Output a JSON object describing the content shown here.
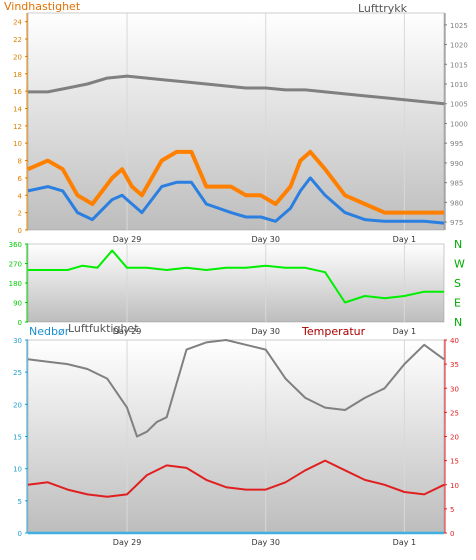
{
  "chart_data": [
    {
      "type": "line",
      "title_left": "Vindhastighet",
      "title_right": "Lufttrykk",
      "colors": {
        "gust": "#ff8000",
        "wind": "#2a7fe0",
        "pressure": "#808080",
        "left_axis": "#e08000",
        "right_axis": "#808080"
      },
      "x_ticks": [
        "Day 29",
        "Day 30",
        "Day 1"
      ],
      "y_left": {
        "range": [
          0,
          25
        ],
        "ticks": [
          "0",
          "2",
          "4",
          "6",
          "8",
          "10",
          "12",
          "14",
          "16",
          "18",
          "20",
          "22",
          "24"
        ]
      },
      "y_right": {
        "range": [
          973,
          1028
        ],
        "ticks": [
          "975",
          "980",
          "985",
          "990",
          "995",
          "1000",
          "1005",
          "1010",
          "1015",
          "1020",
          "1025"
        ]
      },
      "series": [
        {
          "key": "pressure",
          "axis": "right",
          "x": [
            0,
            4,
            8,
            12,
            16,
            20,
            24,
            28,
            32,
            36,
            40,
            44,
            48,
            52,
            56,
            60,
            64,
            68,
            72,
            76,
            80,
            84
          ],
          "y": [
            1008,
            1008,
            1009,
            1010,
            1011.5,
            1012,
            1011.5,
            1011,
            1010.5,
            1010,
            1009.5,
            1009,
            1009,
            1008.5,
            1008.5,
            1008,
            1007.5,
            1007,
            1006.5,
            1006,
            1005.5,
            1005
          ]
        },
        {
          "key": "gust",
          "axis": "left",
          "x": [
            0,
            4,
            7,
            10,
            13,
            17,
            19,
            21,
            23,
            25,
            27,
            30,
            33,
            36,
            41,
            44,
            47,
            50,
            53,
            55,
            57,
            60,
            64,
            68,
            72,
            76,
            80,
            84
          ],
          "y": [
            7,
            8,
            7,
            4,
            3,
            6,
            7,
            5,
            4,
            6,
            8,
            9,
            9,
            5,
            5,
            4,
            4,
            3,
            5,
            8,
            9,
            7,
            4,
            3,
            2,
            2,
            2,
            2
          ]
        },
        {
          "key": "wind",
          "axis": "left",
          "x": [
            0,
            4,
            7,
            10,
            13,
            17,
            19,
            21,
            23,
            25,
            27,
            30,
            33,
            36,
            41,
            44,
            47,
            50,
            53,
            55,
            57,
            60,
            64,
            68,
            72,
            76,
            80,
            84
          ],
          "y": [
            4.5,
            5,
            4.5,
            2,
            1.2,
            3.5,
            4,
            3,
            2,
            3.5,
            5,
            5.5,
            5.5,
            3,
            2,
            1.5,
            1.5,
            1,
            2.5,
            4.5,
            6,
            4,
            2,
            1.2,
            1,
            1,
            1,
            0.8
          ]
        }
      ]
    },
    {
      "type": "line",
      "colors": {
        "direction": "#00ee00",
        "left_axis": "#00cc00",
        "right_axis": "#00aa00"
      },
      "x_ticks": [
        "Day 29",
        "Day 30",
        "Day 1"
      ],
      "y_left": {
        "range": [
          0,
          360
        ],
        "ticks": [
          "0",
          "90",
          "180",
          "270",
          "360"
        ]
      },
      "y_right_labels": [
        "N",
        "E",
        "S",
        "W",
        "N"
      ],
      "series": [
        {
          "key": "direction",
          "x": [
            0,
            8,
            11,
            14,
            17,
            20,
            24,
            28,
            32,
            36,
            40,
            44,
            48,
            52,
            56,
            60,
            64,
            68,
            72,
            76,
            80,
            84
          ],
          "y": [
            240,
            240,
            260,
            250,
            330,
            250,
            250,
            240,
            250,
            240,
            250,
            250,
            260,
            250,
            250,
            230,
            90,
            120,
            110,
            120,
            140,
            140
          ]
        }
      ]
    },
    {
      "type": "line",
      "title_left": "Nedbør",
      "title_mid": "Luftfuktighet",
      "title_right": "Temperatur",
      "colors": {
        "humidity": "#808080",
        "temperature": "#e02020",
        "precip": "#40b0e0",
        "left_axis": "#20a0d0",
        "right_axis": "#e02020"
      },
      "x_ticks": [
        "Day 29",
        "Day 30",
        "Day 1"
      ],
      "y_left": {
        "range": [
          0,
          30
        ],
        "ticks": [
          "0",
          "5",
          "10",
          "15",
          "20",
          "25",
          "30"
        ]
      },
      "y_right": {
        "range": [
          0,
          40
        ],
        "ticks": [
          "0",
          "5",
          "10",
          "15",
          "20",
          "25",
          "30",
          "35",
          "40"
        ]
      },
      "series": [
        {
          "key": "humidity",
          "axis": "right",
          "x": [
            0,
            4,
            8,
            12,
            16,
            20,
            22,
            24,
            26,
            28,
            30,
            32,
            36,
            40,
            44,
            48,
            52,
            56,
            60,
            64,
            68,
            72,
            76,
            80,
            84
          ],
          "y": [
            36,
            35.5,
            35,
            34,
            32,
            26,
            20,
            21,
            23,
            24,
            31,
            38,
            39.5,
            40,
            39,
            38,
            32,
            28,
            26,
            25.5,
            28,
            30,
            35,
            39,
            36
          ]
        },
        {
          "key": "temperature",
          "axis": "right",
          "x": [
            0,
            4,
            8,
            12,
            16,
            20,
            24,
            28,
            32,
            36,
            40,
            44,
            48,
            52,
            56,
            60,
            64,
            68,
            72,
            76,
            80,
            84
          ],
          "y": [
            10,
            10.5,
            9,
            8,
            7.5,
            8,
            12,
            14,
            13.5,
            11,
            9.5,
            9,
            9,
            10.5,
            13,
            15,
            13,
            11,
            10,
            8.5,
            8,
            10
          ]
        },
        {
          "key": "precip",
          "axis": "left",
          "x": [
            0,
            84
          ],
          "y": [
            0,
            0
          ]
        }
      ]
    }
  ]
}
